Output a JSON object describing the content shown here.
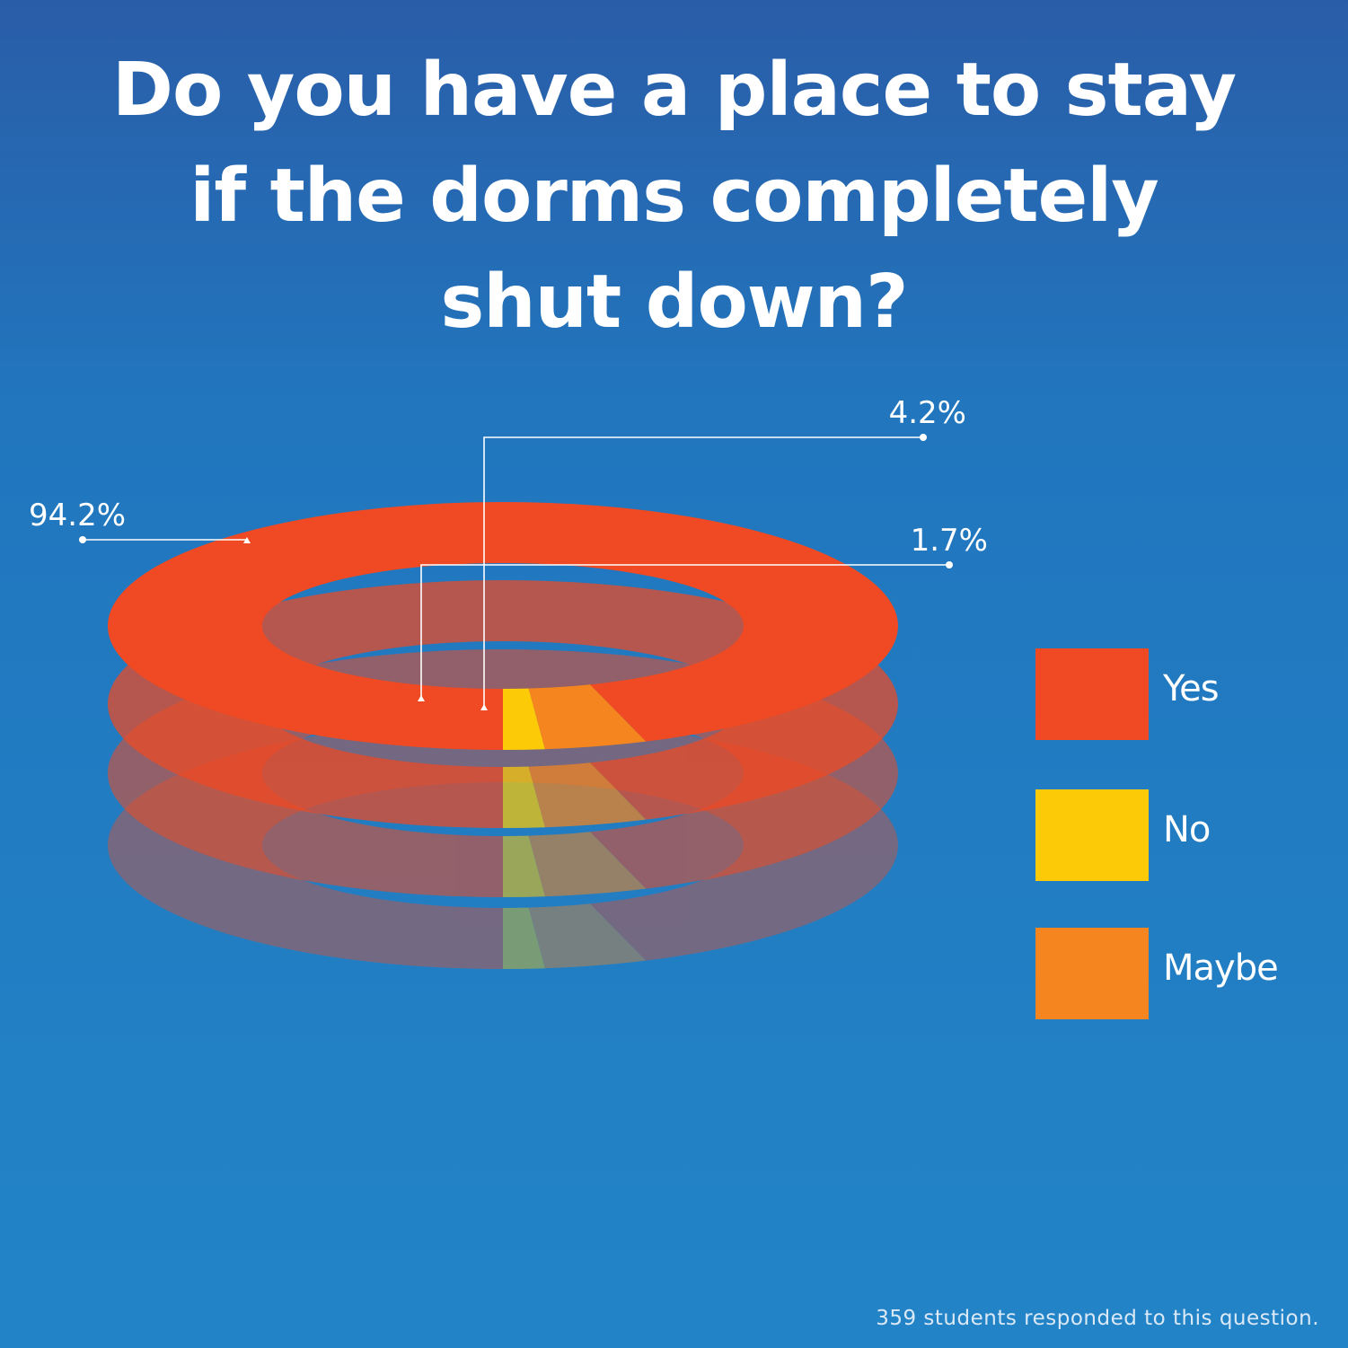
{
  "title_lines": [
    "Do you have a place to stay",
    "if the dorms completely",
    "shut down?"
  ],
  "footnote": "359 students responded to this question.",
  "chart_data": {
    "type": "pie",
    "style": "stacked 3D rings",
    "title": "Do you have a place to stay if the dorms completely shut down?",
    "categories": [
      "Yes",
      "No",
      "Maybe"
    ],
    "values": [
      94.2,
      1.7,
      4.2
    ],
    "labels": [
      "94.2%",
      "1.7%",
      "4.2%"
    ],
    "unit": "%",
    "colors": {
      "Yes": "#ef4a23",
      "No": "#fcca07",
      "Maybe": "#f4851f"
    },
    "legend": {
      "placement": "right",
      "entries": [
        "Yes",
        "No",
        "Maybe"
      ]
    },
    "annotation": "359 students responded to this question."
  }
}
